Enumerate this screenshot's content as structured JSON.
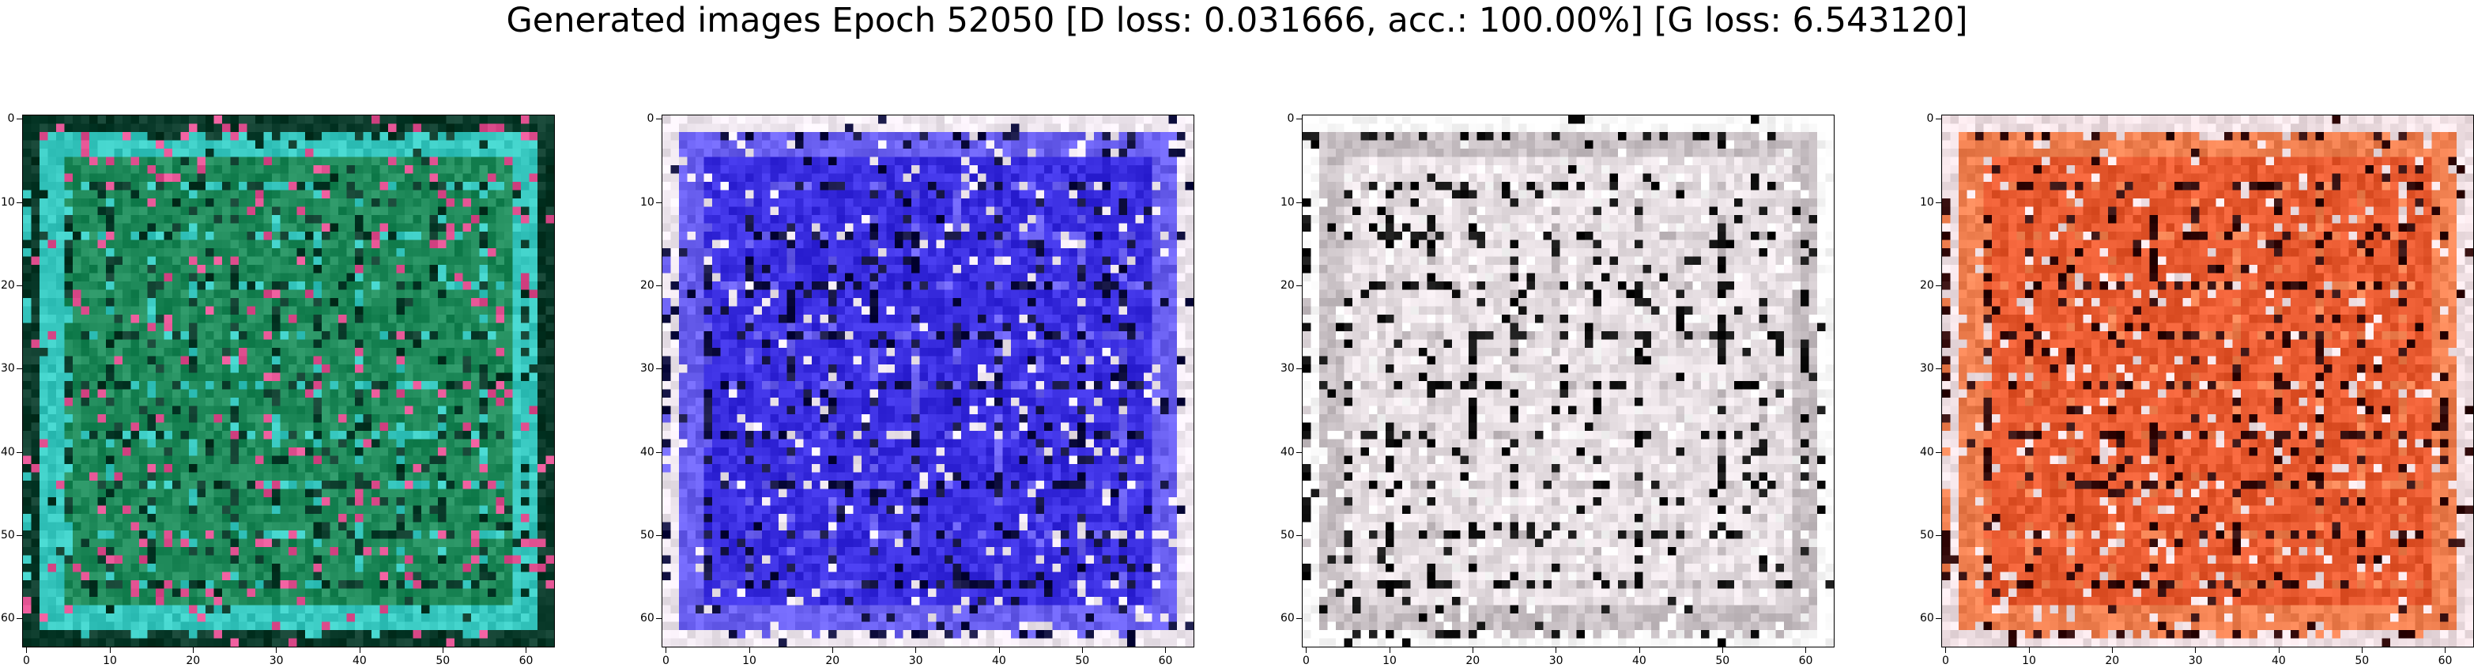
{
  "figure": {
    "title": "Generated images Epoch 52050 [D loss: 0.031666, acc.: 100.00%] [G loss: 6.543120]"
  },
  "axes": {
    "x_ticks": [
      "0",
      "10",
      "20",
      "30",
      "40",
      "50",
      "60"
    ],
    "y_ticks": [
      "0",
      "10",
      "20",
      "30",
      "40",
      "50",
      "60"
    ],
    "x_tick_values": [
      0,
      10,
      20,
      30,
      40,
      50,
      60
    ],
    "y_tick_values": [
      0,
      10,
      20,
      30,
      40,
      50,
      60
    ],
    "image_size": 64
  },
  "panels": [
    {
      "name": "generated-image-1",
      "base_color": "#1f8a5a",
      "accent_color": "#38c8c0",
      "dark_color": "#0a3a2a",
      "light_color": "#e05090"
    },
    {
      "name": "generated-image-2",
      "base_color": "#3a2ee0",
      "accent_color": "#6a60f0",
      "dark_color": "#101040",
      "light_color": "#f0e8f0"
    },
    {
      "name": "generated-image-3",
      "base_color": "#e8e0e4",
      "accent_color": "#c8c0c4",
      "dark_color": "#101010",
      "light_color": "#ffffff"
    },
    {
      "name": "generated-image-4",
      "base_color": "#e85a30",
      "accent_color": "#f08050",
      "dark_color": "#300808",
      "light_color": "#f0e0e4"
    }
  ]
}
